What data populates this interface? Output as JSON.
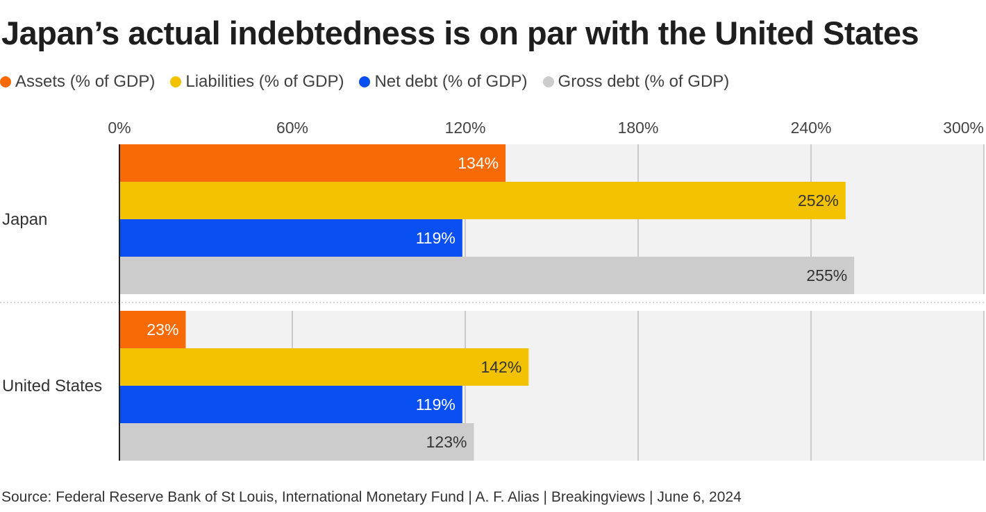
{
  "title": "Japan’s actual indebtedness is on par with the United States",
  "source": "Source: Federal Reserve Bank of St Louis, International Monetary Fund | A. F. Alias | Breakingviews | June 6, 2024",
  "legend": [
    {
      "label": "Assets (% of GDP)",
      "color": "#f76a05",
      "icon": "orange-dot-icon"
    },
    {
      "label": "Liabilities (% of GDP)",
      "color": "#f2c200",
      "icon": "yellow-dot-icon"
    },
    {
      "label": "Net debt (% of GDP)",
      "color": "#0a4ff2",
      "icon": "blue-dot-icon"
    },
    {
      "label": "Gross debt (% of GDP)",
      "color": "#cccccc",
      "icon": "gray-dot-icon"
    }
  ],
  "chart_data": {
    "type": "bar",
    "orientation": "horizontal",
    "categories": [
      "Japan",
      "United States"
    ],
    "series": [
      {
        "name": "Assets (% of GDP)",
        "color": "#f76a05",
        "values": [
          134,
          23
        ],
        "labels": [
          "134%",
          "23%"
        ],
        "label_color": "#ffffff"
      },
      {
        "name": "Liabilities (% of GDP)",
        "color": "#f2c200",
        "values": [
          252,
          142
        ],
        "labels": [
          "252%",
          "142%"
        ],
        "label_color": "#333333"
      },
      {
        "name": "Net debt (% of GDP)",
        "color": "#0a4ff2",
        "values": [
          119,
          119
        ],
        "labels": [
          "119%",
          "119%"
        ],
        "label_color": "#ffffff"
      },
      {
        "name": "Gross debt (% of GDP)",
        "color": "#cccccc",
        "values": [
          255,
          123
        ],
        "labels": [
          "255%",
          "123%"
        ],
        "label_color": "#333333"
      }
    ],
    "xlim": [
      0,
      300
    ],
    "xticks": [
      0,
      60,
      120,
      180,
      240,
      300
    ],
    "xtick_labels": [
      "0%",
      "60%",
      "120%",
      "180%",
      "240%",
      "300%"
    ],
    "legend_position": "top-left",
    "grid": true
  }
}
